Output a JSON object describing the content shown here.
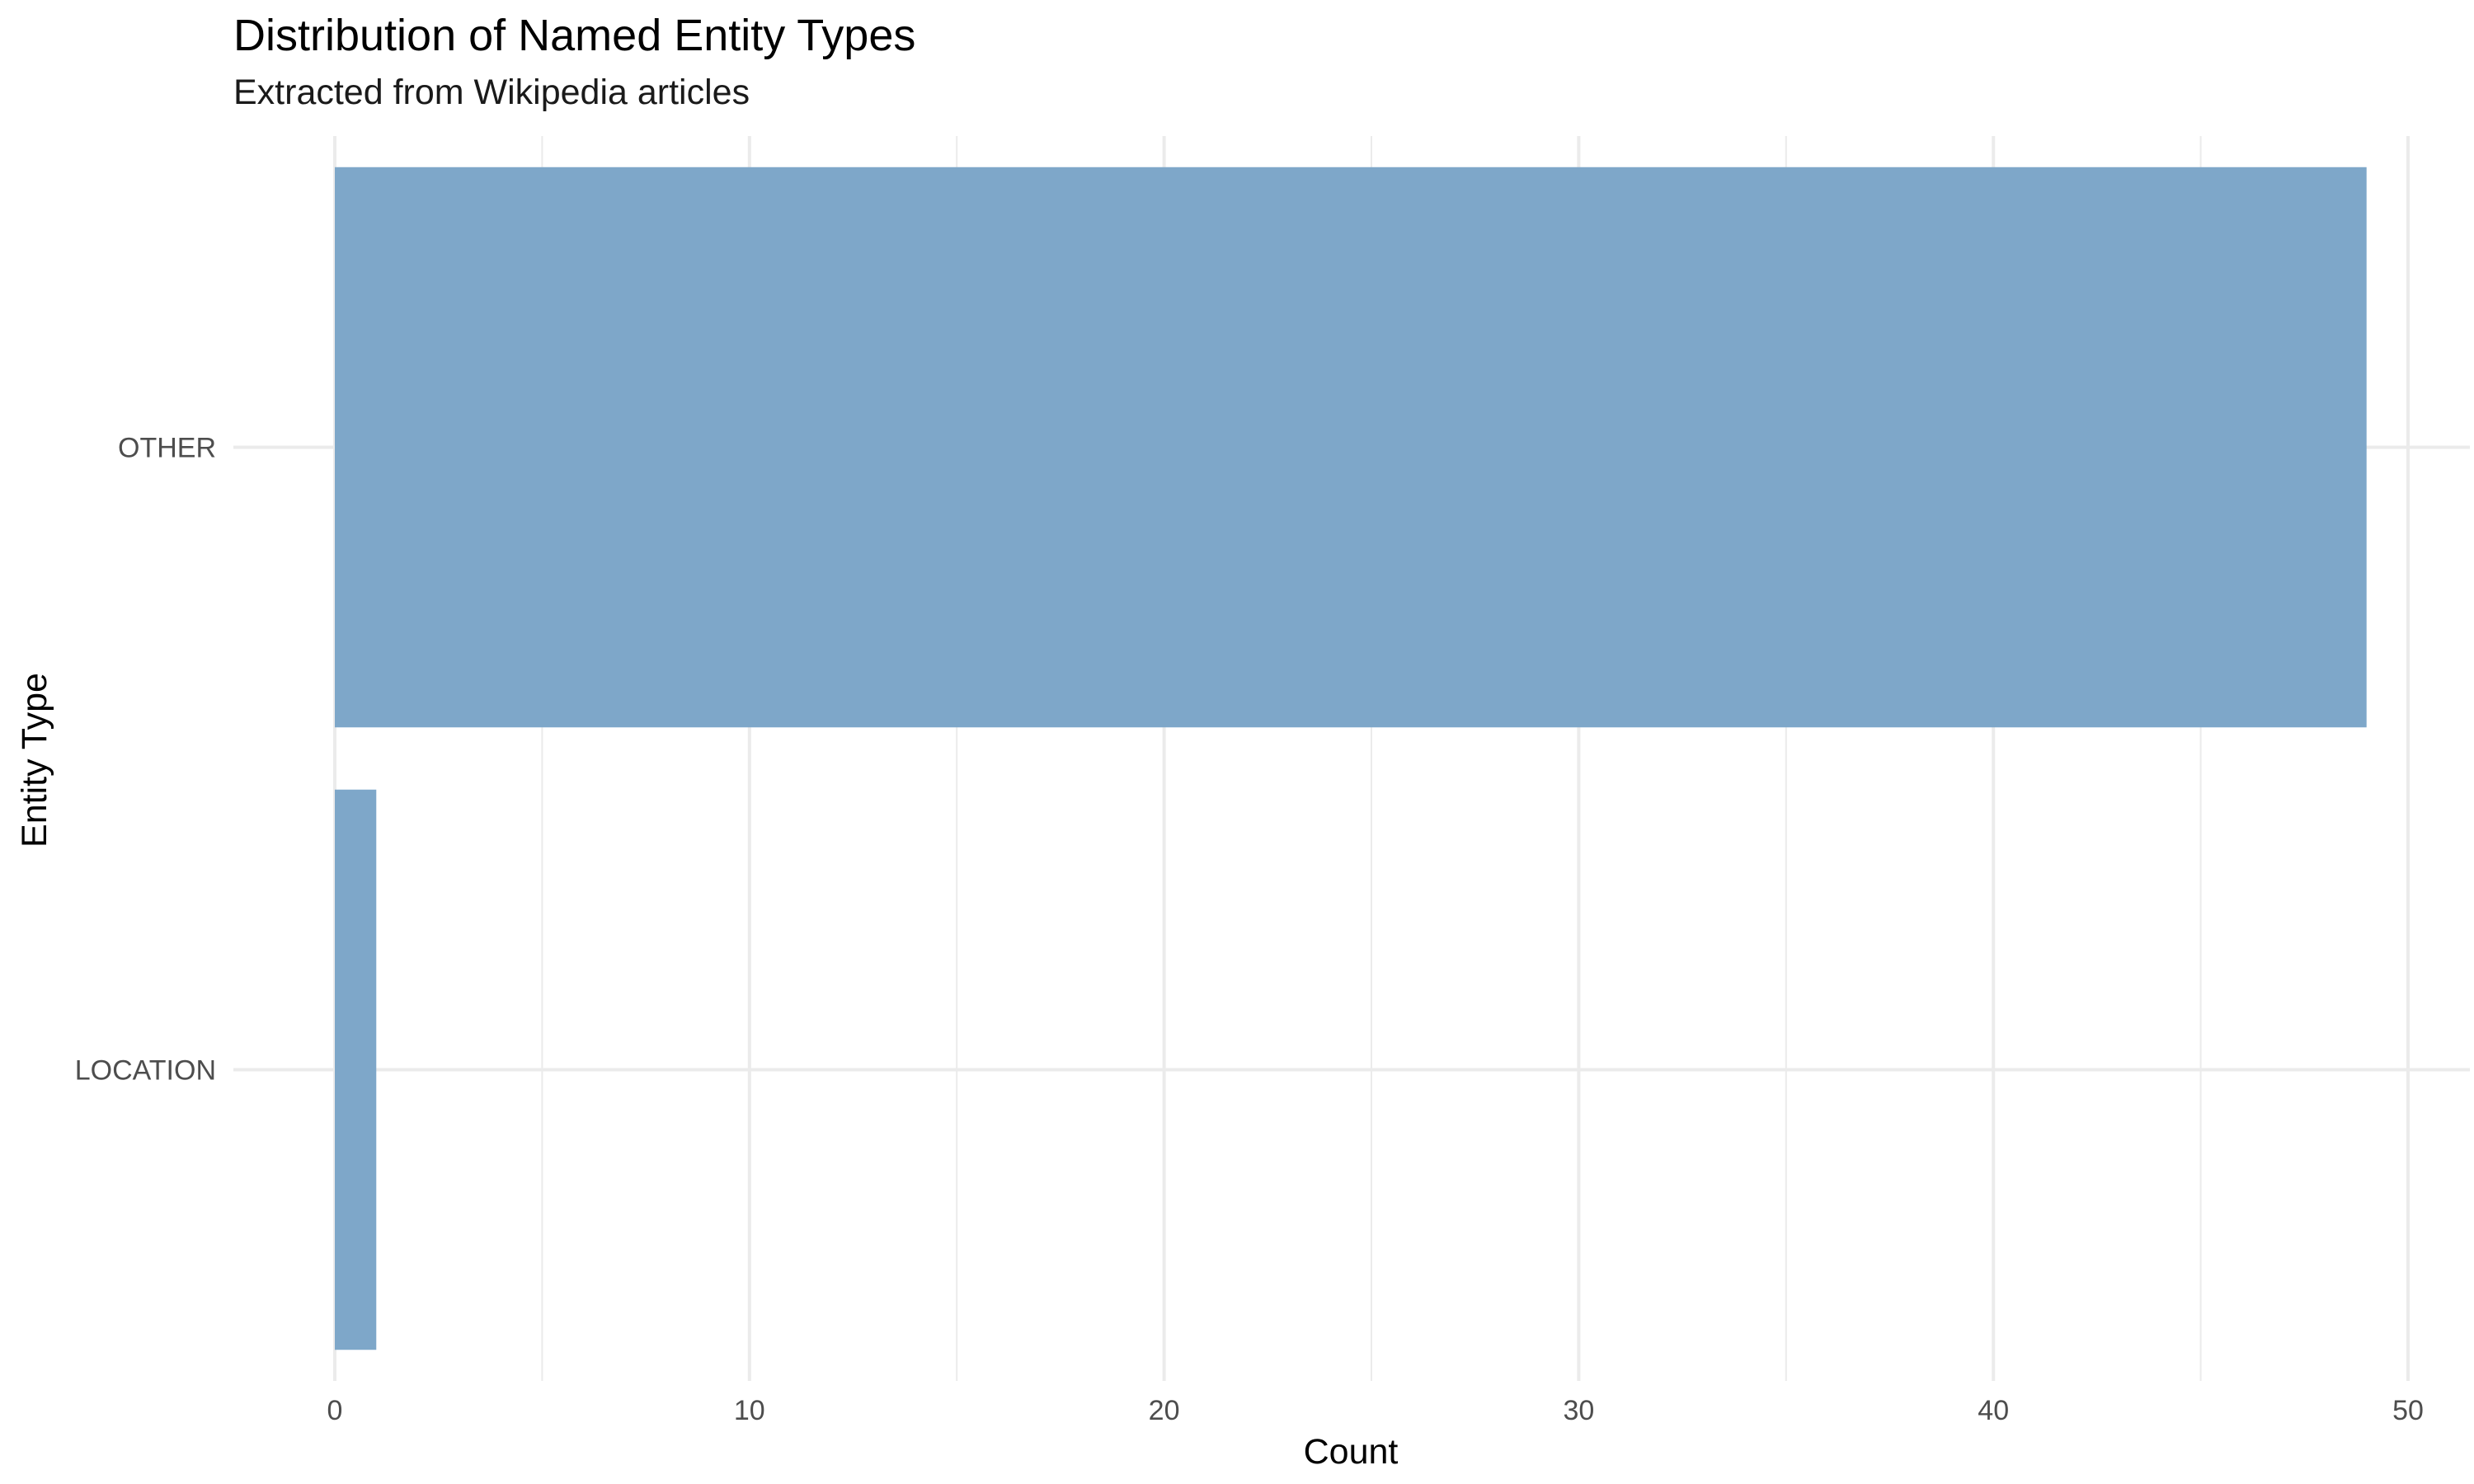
{
  "chart_data": {
    "type": "bar",
    "orientation": "horizontal",
    "title": "Distribution of Named Entity Types",
    "subtitle": "Extracted from Wikipedia articles",
    "xlabel": "Count",
    "ylabel": "Entity Type",
    "categories": [
      "OTHER",
      "LOCATION"
    ],
    "values": [
      49,
      1
    ],
    "xlim": [
      0,
      50
    ],
    "xticks": [
      0,
      10,
      20,
      30,
      40,
      50
    ],
    "grid": true,
    "bar_color": "#7ea7c9",
    "grid_color": "#ebebeb"
  }
}
